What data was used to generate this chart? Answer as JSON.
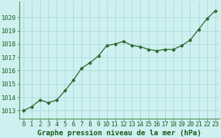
{
  "x": [
    0,
    1,
    2,
    3,
    4,
    5,
    6,
    7,
    8,
    9,
    10,
    11,
    12,
    13,
    14,
    15,
    16,
    17,
    18,
    19,
    20,
    21,
    22,
    23
  ],
  "y": [
    1013.0,
    1013.3,
    1013.8,
    1013.6,
    1013.8,
    1014.5,
    1015.3,
    1016.2,
    1016.6,
    1017.1,
    1017.9,
    1018.0,
    1018.2,
    1017.9,
    1017.8,
    1017.6,
    1017.5,
    1017.6,
    1017.6,
    1017.9,
    1018.3,
    1019.1,
    1019.9,
    1020.5
  ],
  "line_color": "#2d6a2d",
  "marker": "D",
  "marker_size": 2.5,
  "line_width": 1.0,
  "bg_color": "#cef0f0",
  "grid_color": "#a8d8d8",
  "plot_border_color": "#4a8a4a",
  "ylabel_ticks": [
    1013,
    1014,
    1015,
    1016,
    1017,
    1018,
    1019,
    1020
  ],
  "xlabel_ticks": [
    0,
    1,
    2,
    3,
    4,
    5,
    6,
    7,
    8,
    9,
    10,
    11,
    12,
    13,
    14,
    15,
    16,
    17,
    18,
    19,
    20,
    21,
    22,
    23
  ],
  "ylim": [
    1012.4,
    1021.2
  ],
  "xlim": [
    -0.5,
    23.5
  ],
  "xlabel": "Graphe pression niveau de la mer (hPa)",
  "xlabel_fontsize": 7.5,
  "tick_fontsize": 6.5,
  "xlabel_color": "#1a5c1a",
  "tick_color": "#1a5c1a"
}
